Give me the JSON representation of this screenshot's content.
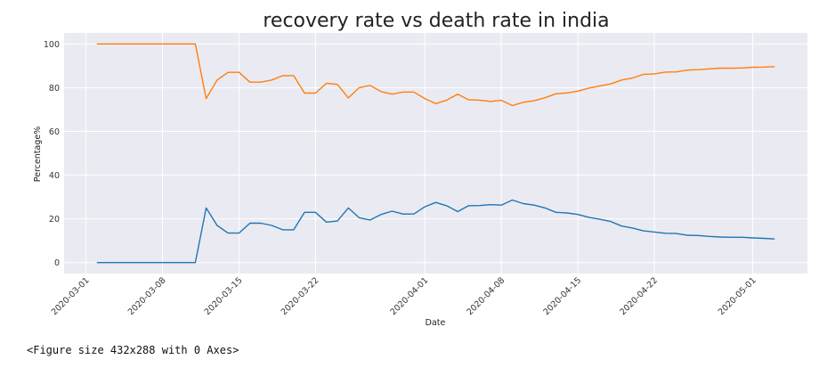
{
  "chart_data": {
    "type": "line",
    "title": "recovery rate vs death rate in india",
    "xlabel": "Date",
    "ylabel": "Percentage%",
    "x_start": "2020-03-02",
    "x": [
      "2020-03-02",
      "2020-03-03",
      "2020-03-04",
      "2020-03-05",
      "2020-03-06",
      "2020-03-07",
      "2020-03-08",
      "2020-03-09",
      "2020-03-10",
      "2020-03-11",
      "2020-03-12",
      "2020-03-13",
      "2020-03-14",
      "2020-03-15",
      "2020-03-16",
      "2020-03-17",
      "2020-03-18",
      "2020-03-19",
      "2020-03-20",
      "2020-03-21",
      "2020-03-22",
      "2020-03-23",
      "2020-03-24",
      "2020-03-25",
      "2020-03-26",
      "2020-03-27",
      "2020-03-28",
      "2020-03-29",
      "2020-03-30",
      "2020-03-31",
      "2020-04-01",
      "2020-04-02",
      "2020-04-03",
      "2020-04-04",
      "2020-04-05",
      "2020-04-06",
      "2020-04-07",
      "2020-04-08",
      "2020-04-09",
      "2020-04-10",
      "2020-04-11",
      "2020-04-12",
      "2020-04-13",
      "2020-04-14",
      "2020-04-15",
      "2020-04-16",
      "2020-04-17",
      "2020-04-18",
      "2020-04-19",
      "2020-04-20",
      "2020-04-21",
      "2020-04-22",
      "2020-04-23",
      "2020-04-24",
      "2020-04-25",
      "2020-04-26",
      "2020-04-27",
      "2020-04-28",
      "2020-04-29",
      "2020-04-30",
      "2020-05-01",
      "2020-05-02",
      "2020-05-03"
    ],
    "series": [
      {
        "color": "#1f77b4",
        "values": [
          0,
          0,
          0,
          0,
          0,
          0,
          0,
          0,
          0,
          0,
          25,
          17,
          13.5,
          13.5,
          18,
          18,
          17,
          15,
          15,
          23,
          23,
          18.5,
          19,
          25,
          20.5,
          19.5,
          22,
          23.5,
          22.2,
          22.2,
          25.5,
          27.5,
          26,
          23.3,
          26,
          26.1,
          26.5,
          26.3,
          28.6,
          27,
          26.3,
          25,
          23,
          22.7,
          22,
          20.7,
          19.8,
          18.8,
          16.7,
          15.8,
          14.5,
          14,
          13.4,
          13.3,
          12.5,
          12.4,
          12,
          11.7,
          11.6,
          11.6,
          11.3,
          11.1,
          10.8
        ]
      },
      {
        "color": "#ff7f0e",
        "values": [
          100,
          100,
          100,
          100,
          100,
          100,
          100,
          100,
          100,
          100,
          75,
          83.5,
          87,
          87,
          82.5,
          82.5,
          83.5,
          85.5,
          85.5,
          77.5,
          77.5,
          82,
          81.5,
          75.3,
          80,
          81,
          78.2,
          77,
          78,
          78,
          75,
          72.7,
          74.3,
          77,
          74.5,
          74.3,
          73.7,
          74.2,
          71.8,
          73.3,
          74,
          75.4,
          77.2,
          77.6,
          78.4,
          79.8,
          80.8,
          81.7,
          83.5,
          84.4,
          86.1,
          86.3,
          87.1,
          87.2,
          88,
          88.2,
          88.6,
          88.9,
          88.9,
          89,
          89.3,
          89.4,
          89.6
        ]
      }
    ],
    "y_ticks": [
      0,
      20,
      40,
      60,
      80,
      100
    ],
    "x_ticks": [
      "2020-03-01",
      "2020-03-08",
      "2020-03-15",
      "2020-03-22",
      "2020-04-01",
      "2020-04-08",
      "2020-04-15",
      "2020-04-22",
      "2020-05-01"
    ],
    "grid": true,
    "background": "#eaeaf2",
    "grid_color": "#ffffff"
  },
  "output_text": "<Figure size 432x288 with 0 Axes>"
}
